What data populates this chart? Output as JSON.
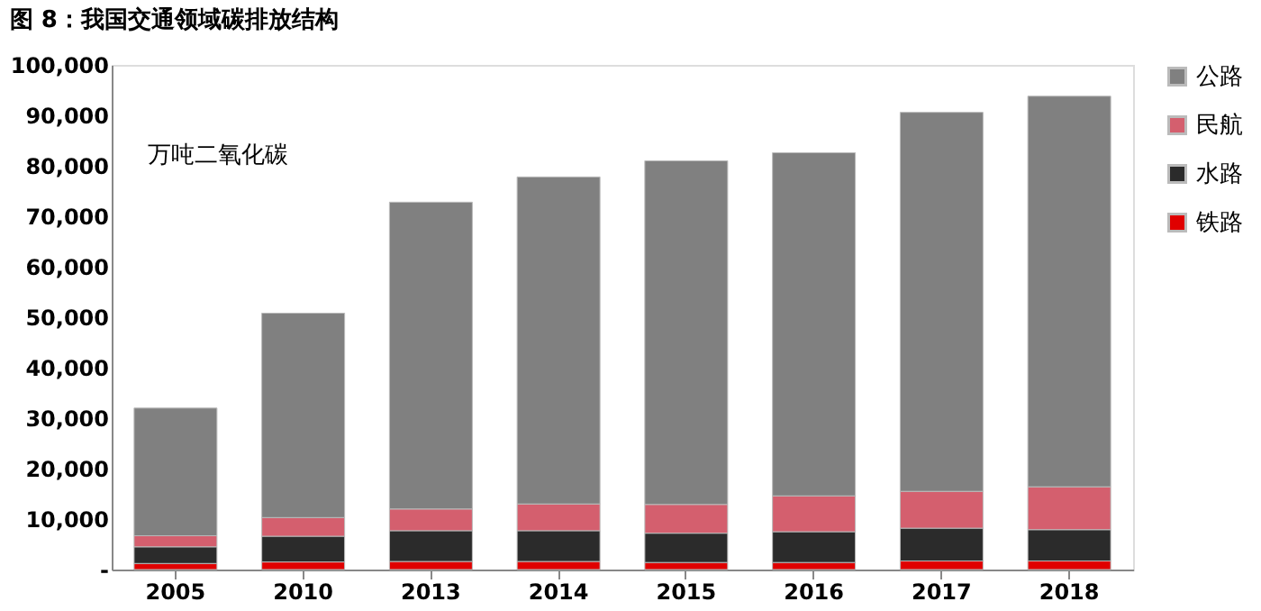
{
  "chart_data": {
    "type": "bar",
    "stacked": true,
    "title": "图 8：我国交通领域碳排放结构",
    "annotations": [
      "万吨二氧化碳"
    ],
    "categories": [
      "2005",
      "2010",
      "2013",
      "2014",
      "2015",
      "2016",
      "2017",
      "2018"
    ],
    "series": [
      {
        "name": "铁路",
        "color": "#e00000",
        "values": [
          1200,
          1500,
          1600,
          1600,
          1400,
          1400,
          1700,
          1700
        ]
      },
      {
        "name": "水路",
        "color": "#2b2b2b",
        "values": [
          3300,
          5100,
          6100,
          6100,
          5800,
          6100,
          6500,
          6200
        ]
      },
      {
        "name": "民航",
        "color": "#d45f6e",
        "values": [
          2200,
          3700,
          4300,
          5300,
          5700,
          7100,
          7300,
          8500
        ]
      },
      {
        "name": "公路",
        "color": "#808080",
        "values": [
          25300,
          40500,
          60800,
          64800,
          68100,
          68000,
          75100,
          77400
        ]
      }
    ],
    "ylim": [
      0,
      100000
    ],
    "yticks": [
      {
        "value": 0,
        "label": "-"
      },
      {
        "value": 10000,
        "label": "10,000"
      },
      {
        "value": 20000,
        "label": "20,000"
      },
      {
        "value": 30000,
        "label": "30,000"
      },
      {
        "value": 40000,
        "label": "40,000"
      },
      {
        "value": 50000,
        "label": "50,000"
      },
      {
        "value": 60000,
        "label": "60,000"
      },
      {
        "value": 70000,
        "label": "70,000"
      },
      {
        "value": 80000,
        "label": "80,000"
      },
      {
        "value": 90000,
        "label": "90,000"
      },
      {
        "value": 100000,
        "label": "100,000"
      }
    ],
    "legend": "right",
    "grid": false
  }
}
